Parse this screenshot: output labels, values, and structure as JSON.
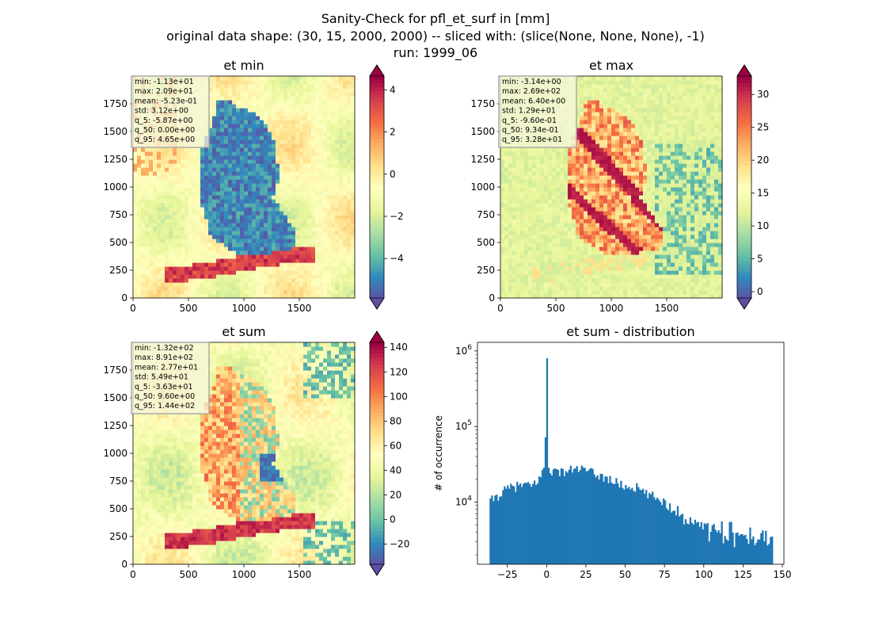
{
  "figure": {
    "title_lines": [
      "Sanity-Check for pfl_et_surf in [mm]",
      "original data shape: (30, 15, 2000, 2000) -- sliced with: (slice(None, None, None), -1)",
      "run: 1999_06"
    ]
  },
  "chart_data": [
    {
      "type": "heatmap",
      "title": "et min",
      "xlim": [
        0,
        2000
      ],
      "ylim": [
        0,
        2000
      ],
      "x_ticks": [
        "0",
        "500",
        "1000",
        "1500"
      ],
      "y_ticks": [
        "0",
        "250",
        "500",
        "750",
        "1000",
        "1250",
        "1500",
        "1750"
      ],
      "colormap": "Spectral",
      "colorbar": {
        "range": [
          -5.87,
          4.65
        ],
        "extend": "both",
        "ticks": [
          "−4",
          "−2",
          "0",
          "2",
          "4"
        ],
        "tick_values": [
          -4,
          -2,
          0,
          2,
          4
        ]
      },
      "stats": [
        "min: -1.13e+01",
        "max: 2.09e+01",
        "mean: -5.23e-01",
        "std: 3.12e+00",
        "q_5: -5.87e+00",
        "q_50: 0.00e+00",
        "q_95: 4.65e+00"
      ]
    },
    {
      "type": "heatmap",
      "title": "et max",
      "xlim": [
        0,
        2000
      ],
      "ylim": [
        0,
        2000
      ],
      "x_ticks": [
        "0",
        "500",
        "1000",
        "1500"
      ],
      "y_ticks": [
        "0",
        "250",
        "500",
        "750",
        "1000",
        "1250",
        "1500",
        "1750"
      ],
      "colormap": "Spectral",
      "colorbar": {
        "range": [
          -0.96,
          32.8
        ],
        "extend": "both",
        "ticks": [
          "0",
          "5",
          "10",
          "15",
          "20",
          "25",
          "30"
        ],
        "tick_values": [
          0,
          5,
          10,
          15,
          20,
          25,
          30
        ]
      },
      "stats": [
        "min: -3.14e+00",
        "max: 2.69e+02",
        "mean: 6.40e+00",
        "std: 1.29e+01",
        "q_5: -9.60e-01",
        "q_50: 9.34e-01",
        "q_95: 3.28e+01"
      ]
    },
    {
      "type": "heatmap",
      "title": "et sum",
      "xlim": [
        0,
        2000
      ],
      "ylim": [
        0,
        2000
      ],
      "x_ticks": [
        "0",
        "500",
        "1000",
        "1500"
      ],
      "y_ticks": [
        "0",
        "250",
        "500",
        "750",
        "1000",
        "1250",
        "1500",
        "1750"
      ],
      "colormap": "Spectral",
      "colorbar": {
        "range": [
          -36.3,
          144
        ],
        "extend": "both",
        "ticks": [
          "−20",
          "0",
          "20",
          "40",
          "60",
          "80",
          "100",
          "120",
          "140"
        ],
        "tick_values": [
          -20,
          0,
          20,
          40,
          60,
          80,
          100,
          120,
          140
        ]
      },
      "stats": [
        "min: -1.32e+02",
        "max: 8.91e+02",
        "mean: 2.77e+01",
        "std: 5.49e+01",
        "q_5: -3.63e+01",
        "q_50: 9.60e+00",
        "q_95: 1.44e+02"
      ]
    },
    {
      "type": "bar",
      "title": "et sum - distribution",
      "xlabel": "",
      "ylabel": "# of occurrence",
      "yscale": "log",
      "xlim": [
        -44,
        151
      ],
      "ylim": [
        1500,
        1300000
      ],
      "x_ticks": [
        "−25",
        "0",
        "25",
        "50",
        "75",
        "100",
        "125",
        "150"
      ],
      "x_tick_values": [
        -25,
        0,
        25,
        50,
        75,
        100,
        125,
        150
      ],
      "y_ticks": [
        "10^4",
        "10^5",
        "10^6"
      ],
      "y_tick_values": [
        10000,
        100000,
        1000000
      ],
      "color": "#1f77b4",
      "bins": {
        "start": -36.3,
        "end": 144,
        "count": 180
      },
      "profile": [
        [
          -36.3,
          10000
        ],
        [
          -34,
          11000
        ],
        [
          -30,
          12500
        ],
        [
          -25,
          15000
        ],
        [
          -20,
          16000
        ],
        [
          -15,
          17000
        ],
        [
          -10,
          16000
        ],
        [
          -5,
          20000
        ],
        [
          -2,
          26000
        ],
        [
          -1,
          32000
        ],
        [
          0,
          800000
        ],
        [
          1,
          30000
        ],
        [
          3,
          26000
        ],
        [
          10,
          25000
        ],
        [
          20,
          28000
        ],
        [
          25,
          26000
        ],
        [
          30,
          24000
        ],
        [
          40,
          20000
        ],
        [
          50,
          16000
        ],
        [
          58,
          15500
        ],
        [
          62,
          13000
        ],
        [
          70,
          11500
        ],
        [
          75,
          10000
        ],
        [
          80,
          8000
        ],
        [
          85,
          6800
        ],
        [
          90,
          6000
        ],
        [
          95,
          5500
        ],
        [
          100,
          5000
        ],
        [
          105,
          4600
        ],
        [
          110,
          4200
        ],
        [
          115,
          3600
        ],
        [
          120,
          3500
        ],
        [
          125,
          3300
        ],
        [
          130,
          3200
        ],
        [
          135,
          3000
        ],
        [
          140,
          3000
        ],
        [
          144,
          3000
        ]
      ]
    }
  ]
}
